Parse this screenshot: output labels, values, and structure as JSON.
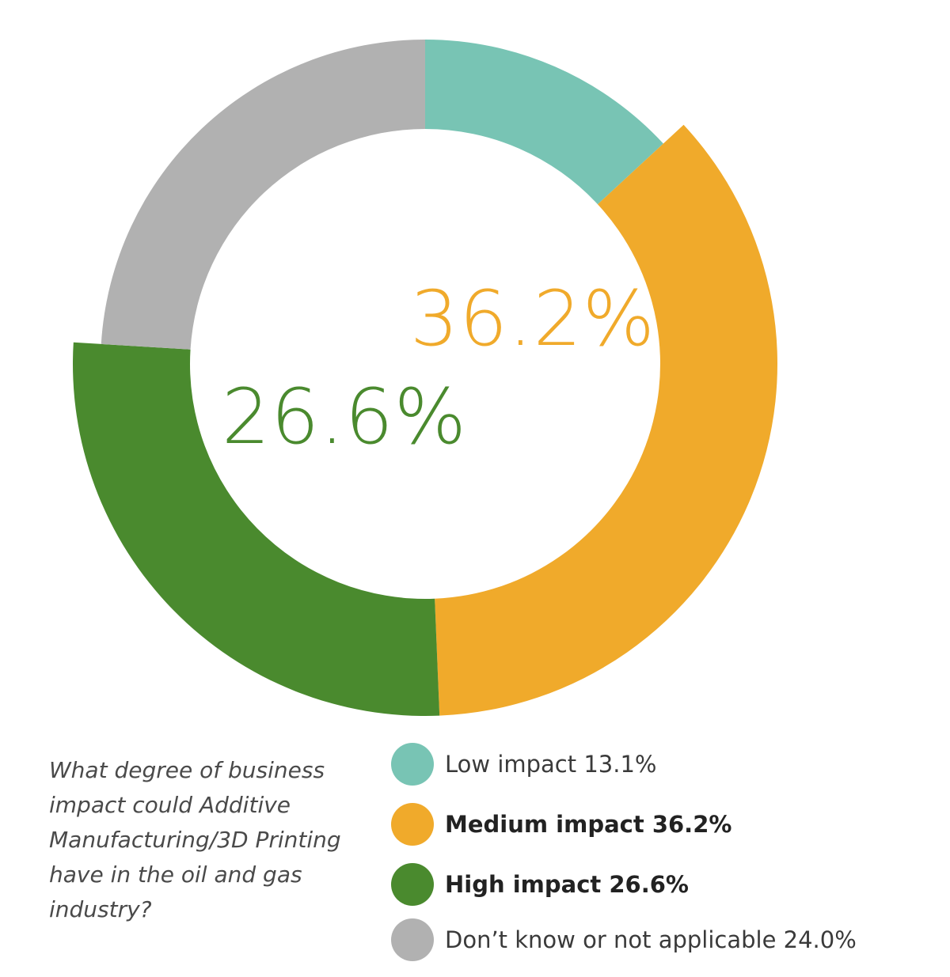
{
  "chart_data": {
    "type": "pie",
    "variant": "donut",
    "slices": [
      {
        "label": "Low impact",
        "value": 13.1,
        "color": "#78C4B4",
        "legend_text": "Low impact 13.1%",
        "emphasized": false
      },
      {
        "label": "Medium impact",
        "value": 36.2,
        "color": "#F0AA2B",
        "legend_text": "Medium impact 36.2%",
        "emphasized": true,
        "center_label": "36.2%"
      },
      {
        "label": "High impact",
        "value": 26.6,
        "color": "#4A8A2E",
        "legend_text": "High impact 26.6%",
        "emphasized": true,
        "center_label": "26.6%"
      },
      {
        "label": "Don’t know or not applicable",
        "value": 24.0,
        "color": "#B1B1B1",
        "legend_text": "Don’t know or not applicable 24.0%",
        "emphasized": false
      }
    ],
    "question": "What degree of business impact could Additive Manufacturing/3D Printing have in the oil and gas industry?",
    "legend_position": "bottom-right",
    "question_position": "bottom-left"
  }
}
